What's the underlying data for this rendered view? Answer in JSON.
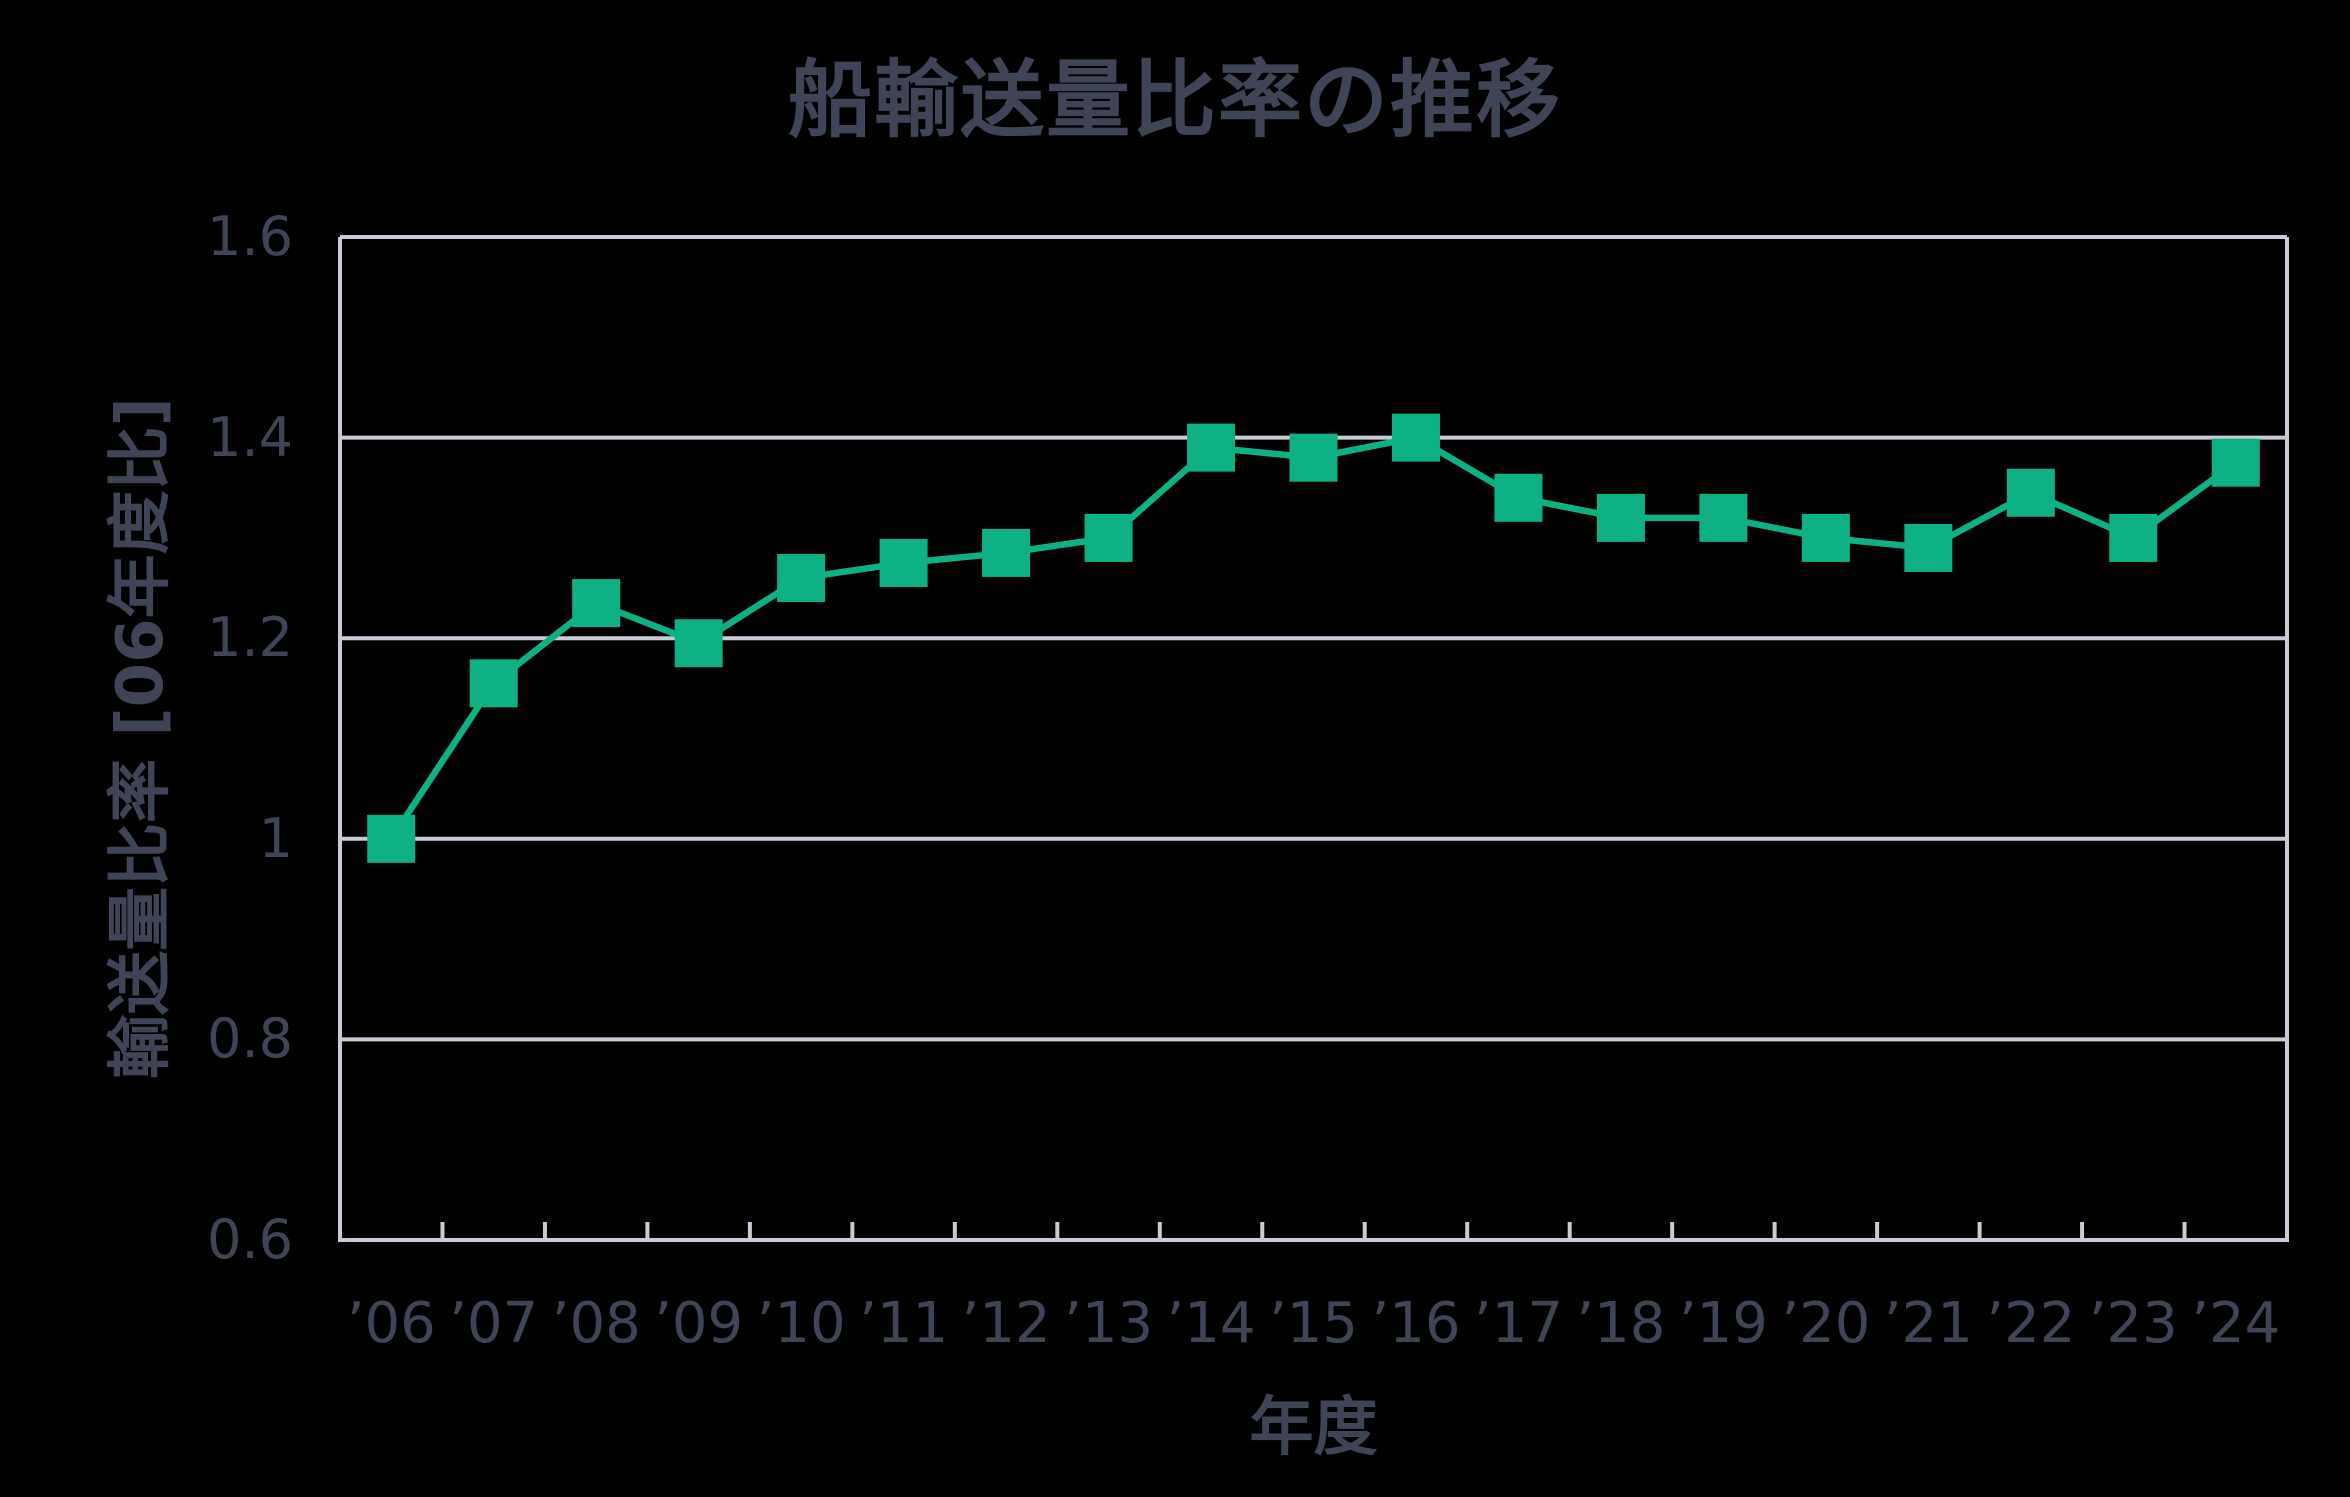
{
  "title": "船輸送量比率の推移",
  "colors": {
    "background": "#000000",
    "text": "#3F4557",
    "axis": "#C8CBD6",
    "grid": "#C8CBD6",
    "series": "#0EB183"
  },
  "chart_data": {
    "type": "line",
    "title": "船輸送量比率の推移",
    "xlabel": "年度",
    "ylabel": "輸送量比率 [06年度比]",
    "categories": [
      "’06",
      "’07",
      "’08",
      "’09",
      "’10",
      "’11",
      "’12",
      "’13",
      "’14",
      "’15",
      "’16",
      "’17",
      "’18",
      "’19",
      "’20",
      "’21",
      "’22",
      "’23",
      "’24"
    ],
    "values": [
      1.0,
      1.155,
      1.235,
      1.195,
      1.26,
      1.275,
      1.285,
      1.3,
      1.39,
      1.38,
      1.4,
      1.34,
      1.32,
      1.32,
      1.3,
      1.29,
      1.345,
      1.3,
      1.375
    ],
    "ylim": [
      0.6,
      1.6
    ],
    "ytick_labels": [
      "0.6",
      "0.8",
      "1",
      "1.2",
      "1.4",
      "1.6"
    ],
    "yticks": [
      0.6,
      0.8,
      1,
      1.2,
      1.4,
      1.6
    ],
    "grid": "horizontal",
    "legend": "none",
    "marker": "square",
    "line_color": "#0EB183",
    "marker_color": "#0EB183"
  }
}
